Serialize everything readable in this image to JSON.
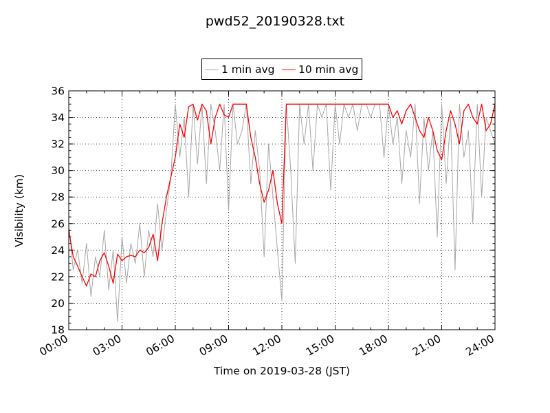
{
  "chart_data": {
    "type": "line",
    "title": "pwd52_20190328.txt",
    "xlabel": "Time on 2019-03-28 (JST)",
    "ylabel": "Visibility (km)",
    "xlim": [
      0,
      24
    ],
    "ylim": [
      18,
      36
    ],
    "x_ticks": [
      "00:00",
      "03:00",
      "06:00",
      "09:00",
      "12:00",
      "15:00",
      "18:00",
      "21:00",
      "24:00"
    ],
    "y_ticks": [
      "18",
      "20",
      "22",
      "24",
      "26",
      "28",
      "30",
      "32",
      "34",
      "36"
    ],
    "grid": true,
    "legend_position": "top-center, above plot",
    "series": [
      {
        "name": "1 min avg",
        "color": "#a6a6a6",
        "x": [
          0,
          0.25,
          0.5,
          0.75,
          1,
          1.25,
          1.5,
          1.75,
          2,
          2.25,
          2.5,
          2.75,
          3,
          3.25,
          3.5,
          3.75,
          4,
          4.25,
          4.5,
          4.75,
          5,
          5.25,
          5.5,
          5.75,
          6,
          6.25,
          6.5,
          6.75,
          7,
          7.25,
          7.5,
          7.75,
          8,
          8.25,
          8.5,
          8.75,
          9,
          9.25,
          9.5,
          9.75,
          10,
          10.25,
          10.5,
          10.75,
          11,
          11.25,
          11.5,
          11.75,
          12,
          12.25,
          12.5,
          12.75,
          13,
          13.25,
          13.5,
          13.75,
          14,
          14.25,
          14.5,
          14.75,
          15,
          15.25,
          15.5,
          15.75,
          16,
          16.25,
          16.5,
          16.75,
          17,
          17.25,
          17.5,
          17.75,
          18,
          18.25,
          18.5,
          18.75,
          19,
          19.25,
          19.5,
          19.75,
          20,
          20.25,
          20.5,
          20.75,
          21,
          21.25,
          21.5,
          21.75,
          22,
          22.25,
          22.5,
          22.75,
          23,
          23.25,
          23.5,
          23.75,
          24
        ],
        "y": [
          26.0,
          22.5,
          24.0,
          21.5,
          24.5,
          20.5,
          23.5,
          22.0,
          25.5,
          21.0,
          24.0,
          18.6,
          25.0,
          21.5,
          24.5,
          23.0,
          26.0,
          22.0,
          25.5,
          23.5,
          27.5,
          24.0,
          27.0,
          29.5,
          35.0,
          31.0,
          34.0,
          28.0,
          35.0,
          30.5,
          35.0,
          29.0,
          35.0,
          33.0,
          30.0,
          35.0,
          27.0,
          35.0,
          32.0,
          33.0,
          35.0,
          29.0,
          33.0,
          30.0,
          23.5,
          32.0,
          28.0,
          24.0,
          20.2,
          35.0,
          30.0,
          23.0,
          35.0,
          32.0,
          35.0,
          30.0,
          35.0,
          34.0,
          35.0,
          28.5,
          35.0,
          32.0,
          35.0,
          34.0,
          35.0,
          33.0,
          35.0,
          35.0,
          34.0,
          35.0,
          35.0,
          31.0,
          35.0,
          32.0,
          34.0,
          29.0,
          33.0,
          31.0,
          35.0,
          27.5,
          34.0,
          30.0,
          33.0,
          25.0,
          35.0,
          29.0,
          34.0,
          22.5,
          35.0,
          31.0,
          33.0,
          26.0,
          35.0,
          28.0,
          34.0,
          33.0,
          32.0
        ]
      },
      {
        "name": "10 min avg",
        "color": "#ff0000",
        "x": [
          0,
          0.25,
          0.5,
          0.75,
          1,
          1.25,
          1.5,
          1.75,
          2,
          2.25,
          2.5,
          2.75,
          3,
          3.25,
          3.5,
          3.75,
          4,
          4.25,
          4.5,
          4.75,
          5,
          5.25,
          5.5,
          5.75,
          6,
          6.25,
          6.5,
          6.75,
          7,
          7.25,
          7.5,
          7.75,
          8,
          8.25,
          8.5,
          8.75,
          9,
          9.25,
          9.5,
          9.75,
          10,
          10.25,
          10.5,
          10.75,
          11,
          11.25,
          11.5,
          11.75,
          12,
          12.25,
          12.5,
          12.75,
          13,
          13.25,
          13.5,
          13.75,
          14,
          14.25,
          14.5,
          14.75,
          15,
          15.25,
          15.5,
          15.75,
          16,
          16.25,
          16.5,
          16.75,
          17,
          17.25,
          17.5,
          17.75,
          18,
          18.25,
          18.5,
          18.75,
          19,
          19.25,
          19.5,
          19.75,
          20,
          20.25,
          20.5,
          20.75,
          21,
          21.25,
          21.5,
          21.75,
          22,
          22.25,
          22.5,
          22.75,
          23,
          23.25,
          23.5,
          23.75,
          24
        ],
        "y": [
          25.5,
          23.5,
          22.8,
          22.0,
          21.3,
          22.2,
          22.0,
          23.2,
          23.8,
          22.8,
          21.5,
          23.7,
          23.2,
          23.5,
          23.6,
          23.5,
          24.0,
          23.8,
          24.2,
          25.2,
          23.2,
          26.0,
          28.0,
          29.5,
          31.0,
          33.5,
          32.5,
          34.8,
          35.0,
          33.8,
          35.0,
          34.5,
          32.0,
          34.0,
          35.0,
          34.2,
          34.0,
          35.0,
          35.0,
          35.0,
          35.0,
          32.5,
          31.0,
          29.0,
          27.6,
          28.5,
          30.0,
          27.5,
          26.0,
          35.0,
          35.0,
          35.0,
          35.0,
          35.0,
          35.0,
          35.0,
          35.0,
          35.0,
          35.0,
          35.0,
          35.0,
          35.0,
          35.0,
          35.0,
          35.0,
          35.0,
          35.0,
          35.0,
          35.0,
          35.0,
          35.0,
          35.0,
          35.0,
          34.0,
          34.5,
          33.5,
          34.5,
          35.0,
          34.0,
          33.0,
          32.5,
          34.0,
          33.0,
          31.5,
          30.8,
          33.0,
          34.5,
          33.5,
          32.0,
          34.5,
          35.0,
          34.0,
          33.5,
          35.0,
          33.0,
          33.5,
          35.0
        ]
      }
    ]
  }
}
